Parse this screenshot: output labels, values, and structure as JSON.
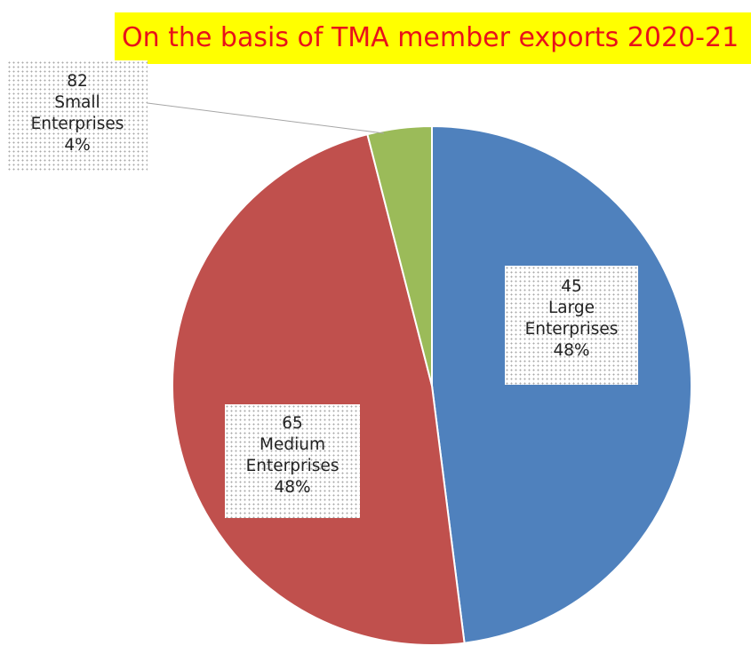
{
  "chart_data": {
    "type": "pie",
    "title": "On the basis of TMA member exports 2020-21",
    "slices": [
      {
        "count": "45",
        "name": "Large",
        "category": "Enterprises",
        "percent_label": "48%",
        "value": 48,
        "color": "#4f81bd"
      },
      {
        "count": "65",
        "name": "Medium",
        "category": "Enterprises",
        "percent_label": "48%",
        "value": 48,
        "color": "#c0504d"
      },
      {
        "count": "82",
        "name": "Small",
        "category": "Enterprises",
        "percent_label": "4%",
        "value": 4,
        "color": "#9bbb59"
      }
    ],
    "start_angle_deg": 0,
    "direction": "clockwise",
    "legend": "none",
    "slice_border_color": "#ffffff",
    "title_background_color": "#ffff00",
    "title_text_color": "#e8121a"
  }
}
